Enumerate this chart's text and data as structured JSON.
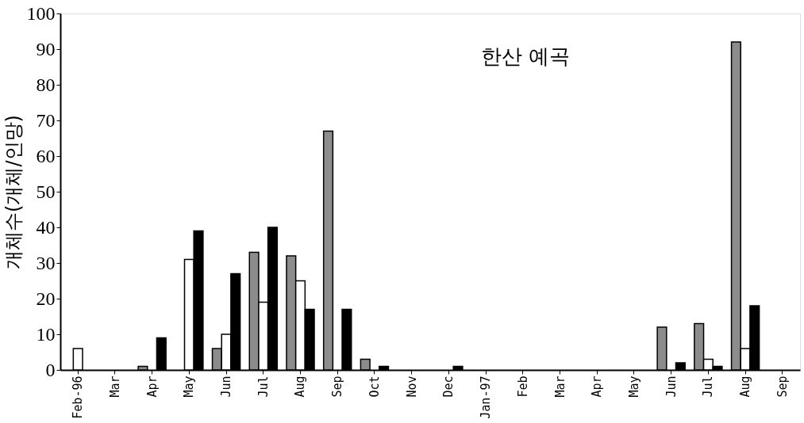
{
  "chart_data": {
    "type": "bar",
    "title": "한산 예곡",
    "ylabel": "개체수(개체/인망)",
    "categories": [
      "Feb-96",
      "Mar",
      "Apr",
      "May",
      "Jun",
      "Jul",
      "Aug",
      "Sep",
      "Oct",
      "Nov",
      "Dec",
      "Jan-97",
      "Feb",
      "Mar",
      "Apr",
      "May",
      "Jun",
      "Jul",
      "Aug",
      "Sep"
    ],
    "series": [
      {
        "color": "#8c8c8c",
        "values": [
          null,
          null,
          1,
          null,
          6,
          33,
          32,
          67,
          3,
          null,
          null,
          null,
          null,
          null,
          null,
          null,
          12,
          13,
          92,
          null
        ]
      },
      {
        "color": "#ffffff",
        "values": [
          6,
          null,
          null,
          31,
          10,
          19,
          25,
          null,
          null,
          null,
          null,
          null,
          null,
          null,
          null,
          null,
          null,
          3,
          6,
          null
        ]
      },
      {
        "color": "#000000",
        "values": [
          null,
          null,
          9,
          39,
          27,
          40,
          17,
          17,
          1,
          null,
          1,
          null,
          null,
          null,
          null,
          null,
          2,
          1,
          18,
          null
        ]
      }
    ],
    "ylim": [
      0,
      100
    ],
    "yticks": [
      0,
      10,
      20,
      30,
      40,
      50,
      60,
      70,
      80,
      90,
      100
    ],
    "grid": false,
    "legend": false
  }
}
